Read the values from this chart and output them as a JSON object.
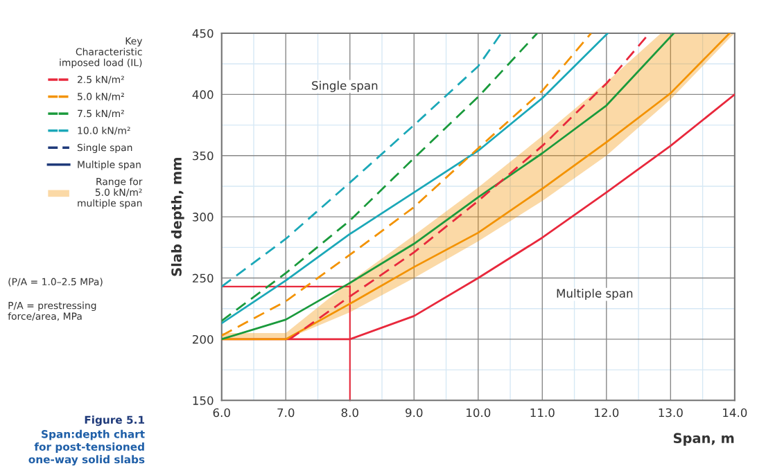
{
  "chart_data": {
    "type": "line",
    "title": "Figure 5.1",
    "subtitle": "Span:depth chart\nfor post-tensioned\none-way solid slabs",
    "xlabel": "Span, m",
    "ylabel": "Slab depth, mm",
    "legend_title": "Key\nCharacteristic\nimposed load (IL)",
    "legend": "left",
    "xlim": [
      6.0,
      14.0
    ],
    "ylim": [
      150,
      450
    ],
    "xticks": [
      {
        "value": 6,
        "label": "6.0"
      },
      {
        "value": 7,
        "label": "7.0"
      },
      {
        "value": 8,
        "label": "8.0"
      },
      {
        "value": 9,
        "label": "9.0"
      },
      {
        "value": 10,
        "label": "10.0"
      },
      {
        "value": 11,
        "label": "11.0"
      },
      {
        "value": 12,
        "label": "12.0"
      },
      {
        "value": 13,
        "label": "13.0"
      },
      {
        "value": 14,
        "label": "14.0"
      }
    ],
    "yticks": [
      150,
      200,
      250,
      300,
      350,
      400,
      450
    ],
    "grid": true,
    "series": [
      {
        "line_style": "solid",
        "color": "#e8283c",
        "x": [
          6,
          7,
          8,
          9,
          10,
          11,
          12,
          13,
          14
        ],
        "values": [
          200,
          200,
          200,
          219,
          250,
          283,
          320,
          358,
          400
        ]
      },
      {
        "line_style": "solid",
        "color": "#f39200",
        "x": [
          6,
          7,
          8,
          9,
          10,
          11,
          12,
          12.85,
          13,
          13.92,
          14
        ],
        "values": [
          200,
          200,
          229,
          259,
          287,
          323,
          361,
          395,
          401,
          450,
          null
        ],
        "lower": [
          200,
          200,
          222,
          250,
          280,
          313,
          350,
          389,
          396,
          446,
          450
        ],
        "upper": [
          205,
          205,
          247,
          285,
          324,
          366,
          410,
          450,
          450,
          450,
          450
        ]
      },
      {
        "line_style": "solid",
        "color": "#1a9a3c",
        "x": [
          6,
          7,
          8,
          9,
          10,
          11,
          12,
          13.05
        ],
        "values": [
          200,
          216,
          246,
          278,
          316,
          352,
          391,
          450
        ]
      },
      {
        "line_style": "solid",
        "color": "#1ba8b8",
        "x": [
          6,
          7,
          8,
          9,
          10,
          11,
          12.02
        ],
        "values": [
          213,
          248,
          286,
          320,
          354,
          397,
          450
        ]
      },
      {
        "line_style": "dashed",
        "name": "2.5 kN/m²",
        "color": "#e8283c",
        "x": [
          7.06,
          8,
          9,
          10,
          11,
          12,
          12.67
        ],
        "values": [
          200,
          235,
          271,
          313,
          358,
          409,
          450
        ]
      },
      {
        "line_style": "dashed",
        "name": "5.0 kN/m²",
        "color": "#f39200",
        "x": [
          6,
          7,
          8,
          9,
          10,
          11,
          11.76
        ],
        "values": [
          203,
          231,
          269,
          308,
          356,
          403,
          450
        ]
      },
      {
        "line_style": "dashed",
        "name": "7.5 kN/m²",
        "color": "#1a9a3c",
        "x": [
          6,
          7,
          8,
          9,
          10,
          10.92
        ],
        "values": [
          215,
          254,
          297,
          348,
          398,
          450
        ]
      },
      {
        "line_style": "dashed",
        "name": "10.0 kN/m²",
        "color": "#1ba8b8",
        "x": [
          6,
          7,
          8,
          9,
          10,
          10.36
        ],
        "values": [
          243,
          282,
          328,
          375,
          423,
          450
        ]
      }
    ],
    "ref_lines": [
      {
        "axis": "y",
        "value": 243,
        "color": "#e8283c"
      },
      {
        "axis": "x",
        "value": 8,
        "color": "#e8283c"
      }
    ],
    "annotations": [
      "Single span",
      "Multiple span",
      "Single span",
      "Multiple span",
      "Range for\n5.0 kN/m²\nmultiple span",
      "(P/A = 1.0–2.5 MPa)",
      "P/A = prestressing\nforce/area, MPa"
    ]
  }
}
